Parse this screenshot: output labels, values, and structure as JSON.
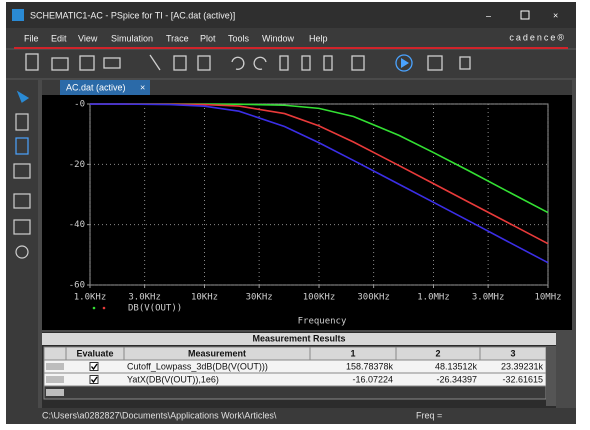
{
  "window": {
    "title": "SCHEMATIC1-AC - PSpice for TI - [AC.dat (active)]",
    "brand": "cadence®"
  },
  "menu": [
    "File",
    "Edit",
    "View",
    "Simulation",
    "Trace",
    "Plot",
    "Tools",
    "Window",
    "Help"
  ],
  "tab": "AC.dat (active)",
  "chart_data": {
    "type": "line",
    "x_label": "Frequency",
    "legend": "DB(V(OUT))",
    "log_x": true,
    "grid": true,
    "x": [
      1000,
      2000,
      5000,
      10000,
      20000,
      50000,
      100000,
      200000,
      500000,
      1000000,
      2000000,
      5000000,
      10000000
    ],
    "xlim": [
      1000,
      10000000
    ],
    "xticks": [
      {
        "value": 1000,
        "label": "1.0KHz"
      },
      {
        "value": 3000,
        "label": "3.0KHz"
      },
      {
        "value": 10000,
        "label": "10KHz"
      },
      {
        "value": 30000,
        "label": "30KHz"
      },
      {
        "value": 100000,
        "label": "100KHz"
      },
      {
        "value": 300000,
        "label": "300KHz"
      },
      {
        "value": 1000000,
        "label": "1.0MHz"
      },
      {
        "value": 3000000,
        "label": "3.0MHz"
      },
      {
        "value": 10000000,
        "label": "10MHz"
      }
    ],
    "ylim": [
      -60,
      0
    ],
    "yticks": [
      {
        "value": 0,
        "label": "-0"
      },
      -20,
      -40,
      -60
    ],
    "series": [
      {
        "color": "#33e033",
        "values": [
          0,
          0,
          0,
          -0.02,
          -0.07,
          -0.41,
          -1.45,
          -4.13,
          -10.4,
          -16.1,
          -22.0,
          -30.0,
          -36.0
        ]
      },
      {
        "color": "#e83a3a",
        "values": [
          0,
          -0.01,
          -0.05,
          -0.18,
          -0.69,
          -3.18,
          -7.26,
          -12.6,
          -20.4,
          -26.4,
          -32.4,
          -40.3,
          -46.3
        ]
      },
      {
        "color": "#3b2ee6",
        "values": [
          -0.01,
          -0.03,
          -0.19,
          -0.73,
          -2.38,
          -7.46,
          -12.85,
          -18.7,
          -26.6,
          -32.6,
          -38.6,
          -46.6,
          -52.6
        ]
      }
    ]
  },
  "measurements": {
    "title": "Measurement Results",
    "columns": [
      "Evaluate",
      "Measurement",
      "1",
      "2",
      "3"
    ],
    "rows": [
      [
        "Cutoff_Lowpass_3dB(DB(V(OUT)))",
        "158.78378k",
        "48.13512k",
        "23.39231k"
      ],
      [
        "YatX(DB(V(OUT)),1e6)",
        "-16.07224",
        "-26.34397",
        "-32.61615"
      ]
    ]
  },
  "status": {
    "path": "C:\\Users\\a0282827\\Documents\\Applications Work\\Articles\\",
    "freq": "Freq ="
  }
}
